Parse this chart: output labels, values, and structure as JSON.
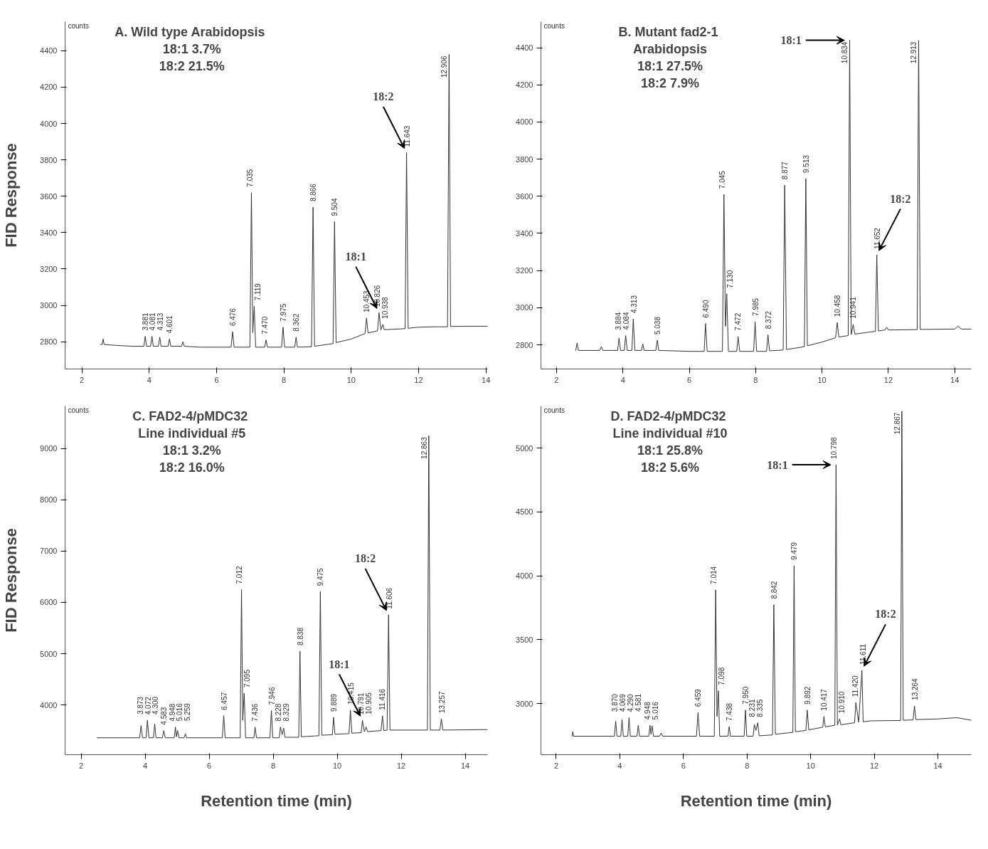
{
  "chart_data": [
    {
      "type": "line",
      "title": "A.  Wild type Arabidopsis\n18:1 3.7%\n18:2 21.5%",
      "ylabel": "FID Response",
      "xlim": [
        1.5,
        14.05
      ],
      "ylim": [
        2650,
        4560
      ],
      "xticks": [
        2,
        4,
        6,
        8,
        10,
        12,
        14
      ],
      "yticks": [
        2800,
        3000,
        3200,
        3400,
        3600,
        3800,
        4000,
        4200,
        4400
      ],
      "annotations": [
        "counts",
        {
          "text": "3.881",
          "x": 3.881,
          "y": 2830
        },
        {
          "text": "4.081",
          "x": 4.081,
          "y": 2830
        },
        {
          "text": "4.313",
          "x": 4.313,
          "y": 2825
        },
        {
          "text": "4.601",
          "x": 4.601,
          "y": 2815
        },
        {
          "text": "6.476",
          "x": 6.476,
          "y": 2855
        },
        {
          "text": "7.035",
          "x": 7.035,
          "y": 3620
        },
        {
          "text": "7.119",
          "x": 7.119,
          "y": 2995
        },
        {
          "text": "7.470",
          "x": 7.47,
          "y": 2810
        },
        {
          "text": "7.975",
          "x": 7.975,
          "y": 2880
        },
        {
          "text": "8.362",
          "x": 8.362,
          "y": 2825
        },
        {
          "text": "8.866",
          "x": 8.866,
          "y": 3540
        },
        {
          "text": "9.504",
          "x": 9.504,
          "y": 3460
        },
        {
          "text": "10.453",
          "x": 10.453,
          "y": 2930
        },
        {
          "text": "10.826",
          "x": 10.826,
          "y": 2960
        },
        {
          "text": "10.938",
          "x": 10.938,
          "y": 2895
        },
        {
          "text": "11.643",
          "x": 11.643,
          "y": 3840
        },
        {
          "text": "12.906",
          "x": 12.906,
          "y": 4380
        },
        {
          "text": "18:2",
          "x": 11.643,
          "y": 3840
        },
        {
          "text": "18:1",
          "x": 10.826,
          "y": 2960
        }
      ],
      "series": [
        {
          "color": "#333333",
          "x": [
            2.55,
            2.6,
            2.63,
            2.66,
            3.0,
            3.5,
            3.84,
            3.881,
            3.92,
            4.04,
            4.081,
            4.12,
            4.27,
            4.313,
            4.35,
            4.56,
            4.601,
            4.64,
            4.96,
            5.0,
            5.04,
            5.5,
            6.0,
            6.43,
            6.476,
            6.52,
            6.99,
            7.035,
            7.075,
            7.119,
            7.16,
            7.43,
            7.47,
            7.51,
            7.93,
            7.975,
            8.02,
            8.32,
            8.362,
            8.4,
            8.82,
            8.866,
            8.91,
            9.46,
            9.504,
            9.55,
            10.0,
            10.41,
            10.453,
            10.5,
            10.78,
            10.826,
            10.88,
            10.938,
            10.98,
            11.6,
            11.643,
            11.69,
            12.0,
            12.5,
            12.86,
            12.906,
            12.95,
            13.5,
            14.05
          ],
          "values": [
            2785,
            2785,
            2815,
            2785,
            2780,
            2775,
            2775,
            2830,
            2775,
            2775,
            2830,
            2775,
            2775,
            2825,
            2775,
            2775,
            2815,
            2775,
            2775,
            2800,
            2775,
            2770,
            2770,
            2770,
            2855,
            2770,
            2770,
            3620,
            2850,
            2995,
            2770,
            2770,
            2810,
            2770,
            2770,
            2880,
            2770,
            2770,
            2825,
            2770,
            2772,
            3540,
            2775,
            2790,
            3460,
            2795,
            2815,
            2845,
            2930,
            2848,
            2860,
            2960,
            2865,
            2895,
            2866,
            2872,
            3840,
            2874,
            2880,
            2882,
            2882,
            4380,
            2884,
            2885,
            2885
          ]
        }
      ]
    },
    {
      "type": "line",
      "title": "B.  Mutant fad2-1\nArabidopsis\n18:1 27.5%\n18:2 7.9%",
      "xlim": [
        1.53,
        14.5
      ],
      "ylim": [
        2670,
        4540
      ],
      "xticks": [
        2,
        4,
        6,
        8,
        10,
        12,
        14
      ],
      "yticks": [
        2800,
        3000,
        3200,
        3400,
        3600,
        3800,
        4000,
        4200,
        4400
      ],
      "annotations": [
        "counts",
        {
          "text": "3.884",
          "x": 3.884,
          "y": 2836
        },
        {
          "text": "4.084",
          "x": 4.084,
          "y": 2850
        },
        {
          "text": "4.313",
          "x": 4.313,
          "y": 2940
        },
        {
          "text": "5.038",
          "x": 5.038,
          "y": 2825
        },
        {
          "text": "6.490",
          "x": 6.49,
          "y": 2915
        },
        {
          "text": "7.045",
          "x": 7.045,
          "y": 3610
        },
        {
          "text": "7.130",
          "x": 7.13,
          "y": 3075
        },
        {
          "text": "7.472",
          "x": 7.472,
          "y": 2845
        },
        {
          "text": "7.985",
          "x": 7.985,
          "y": 2925
        },
        {
          "text": "8.372",
          "x": 8.372,
          "y": 2855
        },
        {
          "text": "8.877",
          "x": 8.877,
          "y": 3660
        },
        {
          "text": "9.513",
          "x": 9.513,
          "y": 3695
        },
        {
          "text": "10.458",
          "x": 10.458,
          "y": 2920
        },
        {
          "text": "10.834",
          "x": 10.834,
          "y": 4440
        },
        {
          "text": "10.941",
          "x": 10.941,
          "y": 2910
        },
        {
          "text": "11.652",
          "x": 11.652,
          "y": 3285
        },
        {
          "text": "12.913",
          "x": 12.913,
          "y": 4440
        },
        {
          "text": "18:1",
          "x": 10.834,
          "y": 4440
        },
        {
          "text": "18:2",
          "x": 11.652,
          "y": 3285
        }
      ],
      "series": [
        {
          "color": "#333333",
          "x": [
            2.58,
            2.62,
            2.66,
            3.3,
            3.35,
            3.4,
            3.84,
            3.884,
            3.93,
            4.04,
            4.084,
            4.13,
            4.27,
            4.313,
            4.36,
            4.56,
            4.6,
            4.64,
            4.99,
            5.038,
            5.08,
            6.0,
            6.45,
            6.49,
            6.54,
            7.0,
            7.045,
            7.09,
            7.13,
            7.18,
            7.43,
            7.472,
            7.52,
            7.94,
            7.985,
            8.03,
            8.33,
            8.372,
            8.42,
            8.83,
            8.877,
            8.93,
            9.47,
            9.513,
            9.56,
            10.0,
            10.41,
            10.458,
            10.51,
            10.79,
            10.834,
            10.88,
            10.941,
            10.99,
            11.61,
            11.652,
            11.7,
            11.9,
            11.95,
            12.0,
            12.87,
            12.913,
            12.96,
            14.0,
            14.1,
            14.2,
            14.5
          ],
          "values": [
            2770,
            2810,
            2770,
            2770,
            2790,
            2770,
            2770,
            2836,
            2770,
            2770,
            2850,
            2770,
            2770,
            2940,
            2770,
            2770,
            2805,
            2770,
            2770,
            2825,
            2770,
            2765,
            2765,
            2915,
            2765,
            2765,
            3610,
            2900,
            3075,
            2765,
            2765,
            2845,
            2765,
            2765,
            2925,
            2765,
            2765,
            2855,
            2768,
            2772,
            3660,
            2775,
            2790,
            3695,
            2795,
            2815,
            2838,
            2920,
            2842,
            2850,
            4440,
            2855,
            2910,
            2858,
            2873,
            3285,
            2875,
            2880,
            2895,
            2880,
            2882,
            4440,
            2883,
            2885,
            2900,
            2885,
            2885
          ]
        }
      ]
    },
    {
      "type": "line",
      "title": "C.  FAD2-4/pMDC32\nLine individual #5\n18:1 3.2%\n18:2 16.0%",
      "ylabel": "FID Response",
      "xlabel": "Retention time (min)",
      "xlim": [
        1.5,
        14.7
      ],
      "ylim": [
        3030,
        9830
      ],
      "xticks": [
        2,
        4,
        6,
        8,
        10,
        12,
        14
      ],
      "yticks": [
        4000,
        5000,
        6000,
        7000,
        8000,
        9000
      ],
      "annotations": [
        "counts",
        {
          "text": "3.873",
          "x": 3.873,
          "y": 3600
        },
        {
          "text": "4.072",
          "x": 4.072,
          "y": 3700
        },
        {
          "text": "4.300",
          "x": 4.3,
          "y": 3630
        },
        {
          "text": "4.583",
          "x": 4.583,
          "y": 3500
        },
        {
          "text": "4.948",
          "x": 4.948,
          "y": 3570
        },
        {
          "text": "5.016",
          "x": 5.016,
          "y": 3500
        },
        {
          "text": "5.259",
          "x": 5.259,
          "y": 3440
        },
        {
          "text": "6.457",
          "x": 6.457,
          "y": 3790
        },
        {
          "text": "7.012",
          "x": 7.012,
          "y": 6250
        },
        {
          "text": "7.095",
          "x": 7.095,
          "y": 4230
        },
        {
          "text": "7.436",
          "x": 7.436,
          "y": 3570
        },
        {
          "text": "7.946",
          "x": 7.946,
          "y": 3890
        },
        {
          "text": "8.228",
          "x": 8.228,
          "y": 3570
        },
        {
          "text": "8.329",
          "x": 8.329,
          "y": 3550
        },
        {
          "text": "8.838",
          "x": 8.838,
          "y": 5050
        },
        {
          "text": "9.475",
          "x": 9.475,
          "y": 6210
        },
        {
          "text": "9.889",
          "x": 9.889,
          "y": 3760
        },
        {
          "text": "10.415",
          "x": 10.415,
          "y": 3900
        },
        {
          "text": "10.791",
          "x": 10.791,
          "y": 3700
        },
        {
          "text": "10.905",
          "x": 10.905,
          "y": 3570
        },
        {
          "text": "11.416",
          "x": 11.416,
          "y": 3790
        },
        {
          "text": "11.606",
          "x": 11.606,
          "y": 5760
        },
        {
          "text": "12.863",
          "x": 12.863,
          "y": 9250
        },
        {
          "text": "13.257",
          "x": 13.257,
          "y": 3730
        },
        {
          "text": "18:2",
          "x": 11.606,
          "y": 5760
        },
        {
          "text": "18:1",
          "x": 10.791,
          "y": 3700
        }
      ],
      "series": [
        {
          "color": "#333333",
          "x": [
            2.5,
            3.3,
            3.83,
            3.873,
            3.92,
            4.03,
            4.072,
            4.12,
            4.26,
            4.3,
            4.34,
            4.54,
            4.583,
            4.63,
            4.91,
            4.948,
            4.98,
            5.016,
            5.06,
            5.22,
            5.259,
            5.3,
            6.0,
            6.41,
            6.457,
            6.5,
            6.97,
            7.012,
            7.05,
            7.095,
            7.14,
            7.4,
            7.436,
            7.48,
            7.9,
            7.946,
            7.99,
            8.19,
            8.228,
            8.28,
            8.329,
            8.37,
            8.8,
            8.838,
            8.88,
            9.43,
            9.475,
            9.52,
            9.85,
            9.889,
            9.93,
            10.37,
            10.415,
            10.46,
            10.75,
            10.791,
            10.85,
            10.905,
            10.95,
            11.37,
            11.416,
            11.46,
            11.56,
            11.606,
            11.65,
            12.82,
            12.863,
            12.91,
            13.21,
            13.257,
            13.3,
            14.7
          ],
          "values": [
            3360,
            3360,
            3360,
            3600,
            3360,
            3360,
            3700,
            3360,
            3360,
            3630,
            3360,
            3360,
            3500,
            3360,
            3360,
            3570,
            3380,
            3500,
            3360,
            3360,
            3440,
            3360,
            3360,
            3360,
            3790,
            3360,
            3360,
            6250,
            3700,
            4230,
            3360,
            3360,
            3570,
            3360,
            3360,
            3890,
            3360,
            3360,
            3570,
            3420,
            3550,
            3370,
            3370,
            5050,
            3380,
            3400,
            6210,
            3410,
            3420,
            3760,
            3430,
            3440,
            3900,
            3450,
            3460,
            3700,
            3480,
            3570,
            3480,
            3500,
            3790,
            3500,
            3510,
            5760,
            3510,
            3510,
            9250,
            3510,
            3510,
            3730,
            3510,
            3520
          ]
        }
      ]
    },
    {
      "type": "line",
      "title": "D.  FAD2-4/pMDC32\nLine individual #10\n18:1 25.8%\n18:2 5.6%",
      "xlabel": "Retention time (min)",
      "xlim": [
        1.52,
        15.05
      ],
      "ylim": [
        2600,
        5330
      ],
      "xticks": [
        2,
        4,
        6,
        8,
        10,
        12,
        14
      ],
      "yticks": [
        3000,
        3500,
        4000,
        4500,
        5000
      ],
      "annotations": [
        "counts",
        {
          "text": "3.870",
          "x": 3.87,
          "y": 2863
        },
        {
          "text": "4.069",
          "x": 4.069,
          "y": 2876
        },
        {
          "text": "4.290",
          "x": 4.29,
          "y": 2890
        },
        {
          "text": "4.581",
          "x": 4.581,
          "y": 2830
        },
        {
          "text": "4.948",
          "x": 4.948,
          "y": 2830
        },
        {
          "text": "5.016",
          "x": 5.016,
          "y": 2825
        },
        {
          "text": "6.459",
          "x": 6.459,
          "y": 2930
        },
        {
          "text": "7.014",
          "x": 7.014,
          "y": 3890
        },
        {
          "text": "7.098",
          "x": 7.098,
          "y": 3100
        },
        {
          "text": "7.438",
          "x": 7.438,
          "y": 2820
        },
        {
          "text": "7.950",
          "x": 7.95,
          "y": 2950
        },
        {
          "text": "8.231",
          "x": 8.231,
          "y": 2835
        },
        {
          "text": "8.335",
          "x": 8.335,
          "y": 2850
        },
        {
          "text": "8.842",
          "x": 8.842,
          "y": 3775
        },
        {
          "text": "9.479",
          "x": 9.479,
          "y": 4080
        },
        {
          "text": "9.892",
          "x": 9.892,
          "y": 2950
        },
        {
          "text": "10.417",
          "x": 10.417,
          "y": 2900
        },
        {
          "text": "10.798",
          "x": 10.798,
          "y": 4870
        },
        {
          "text": "10.910",
          "x": 10.91,
          "y": 2880
        },
        {
          "text": "11.420",
          "x": 11.42,
          "y": 3008
        },
        {
          "text": "11.611",
          "x": 11.611,
          "y": 3260
        },
        {
          "text": "12.867",
          "x": 12.867,
          "y": 5290
        },
        {
          "text": "13.264",
          "x": 13.264,
          "y": 2982
        },
        {
          "text": "18:1",
          "x": 10.798,
          "y": 4870
        },
        {
          "text": "18:2",
          "x": 11.611,
          "y": 3260
        }
      ],
      "series": [
        {
          "color": "#333333",
          "x": [
            2.5,
            2.52,
            2.55,
            3.5,
            3.83,
            3.87,
            3.91,
            4.03,
            4.069,
            4.11,
            4.25,
            4.29,
            4.33,
            4.54,
            4.581,
            4.62,
            4.91,
            4.948,
            4.98,
            5.016,
            5.06,
            5.25,
            5.3,
            5.35,
            6.41,
            6.459,
            6.51,
            6.97,
            7.014,
            7.055,
            7.098,
            7.14,
            7.4,
            7.438,
            7.48,
            7.91,
            7.95,
            7.99,
            8.19,
            8.231,
            8.28,
            8.335,
            8.38,
            8.8,
            8.842,
            8.89,
            9.44,
            9.479,
            9.52,
            9.85,
            9.892,
            9.94,
            10.38,
            10.417,
            10.46,
            10.76,
            10.798,
            10.84,
            10.91,
            10.95,
            11.38,
            11.42,
            11.51,
            11.611,
            11.65,
            11.9,
            12.83,
            12.867,
            12.91,
            13.22,
            13.264,
            13.31,
            14.0,
            14.6,
            15.05
          ],
          "values": [
            2745,
            2780,
            2745,
            2745,
            2745,
            2863,
            2745,
            2745,
            2876,
            2745,
            2745,
            2890,
            2745,
            2745,
            2830,
            2745,
            2745,
            2830,
            2760,
            2825,
            2745,
            2745,
            2770,
            2745,
            2745,
            2930,
            2745,
            2745,
            3890,
            2900,
            3100,
            2745,
            2745,
            2820,
            2745,
            2745,
            2950,
            2745,
            2745,
            2835,
            2790,
            2850,
            2748,
            2755,
            3775,
            2760,
            2775,
            4080,
            2780,
            2790,
            2950,
            2795,
            2815,
            2900,
            2818,
            2830,
            4870,
            2832,
            2880,
            2835,
            2850,
            3008,
            2855,
            3260,
            2858,
            2865,
            2868,
            5290,
            2870,
            2872,
            2982,
            2875,
            2880,
            2890,
            2870
          ]
        }
      ]
    }
  ]
}
